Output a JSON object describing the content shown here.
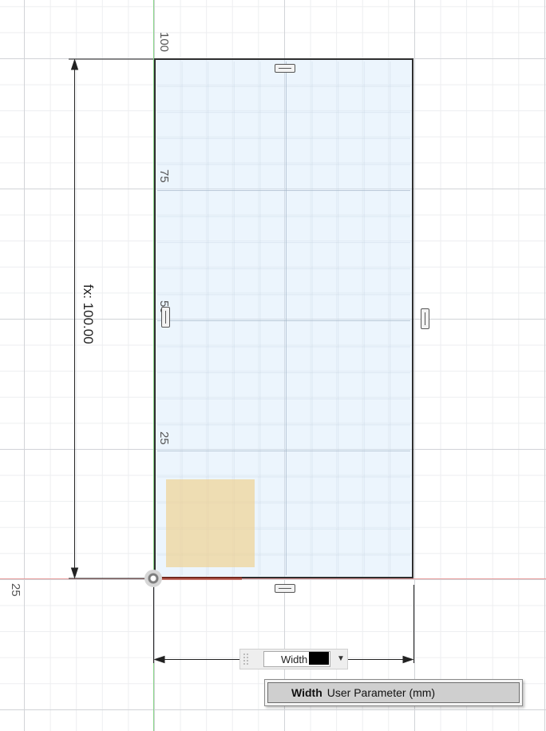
{
  "sketch": {
    "ruler_ticks": [
      "100",
      "75",
      "50",
      "25"
    ],
    "x_axis_tick": "25",
    "height_dimension": "fx: 100.00",
    "rectangle_mm": {
      "width": 50,
      "height": 100
    },
    "colors": {
      "profile_fill": "#d1e7fa",
      "profile_edge": "#2e2e2e",
      "x_axis": "#e79b9b",
      "y_axis": "#86d486",
      "highlight": "#f0d08c"
    }
  },
  "dimension_input": {
    "value": "Width",
    "dropdown_icon": "chevron-down-icon"
  },
  "autocomplete": {
    "item_name": "Width",
    "item_description": "User Parameter (mm)"
  }
}
